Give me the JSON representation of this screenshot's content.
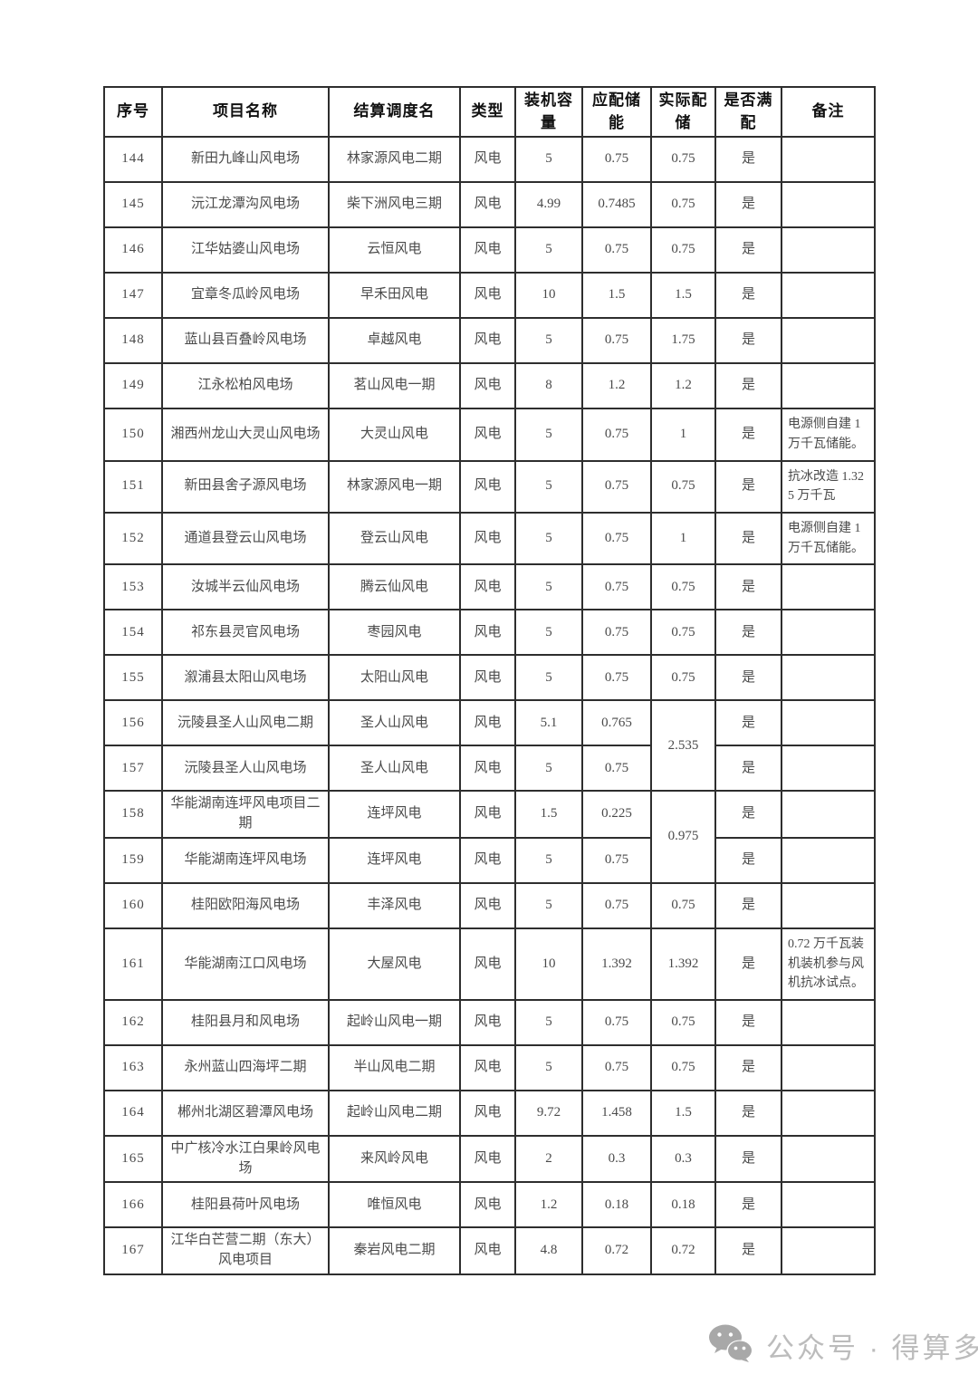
{
  "table": {
    "columns": [
      {
        "key": "no",
        "label": "序号"
      },
      {
        "key": "project",
        "label": "项目名称"
      },
      {
        "key": "dispatch",
        "label": "结算调度名"
      },
      {
        "key": "type",
        "label": "类型"
      },
      {
        "key": "capacity",
        "label": "装机容量"
      },
      {
        "key": "required",
        "label": "应配储能"
      },
      {
        "key": "actual",
        "label": "实际配储"
      },
      {
        "key": "satisfied",
        "label": "是否满配"
      },
      {
        "key": "remark",
        "label": "备注"
      }
    ],
    "rows": [
      {
        "no": "144",
        "project": "新田九峰山风电场",
        "dispatch": "林家源风电二期",
        "type": "风电",
        "capacity": "5",
        "required": "0.75",
        "actual": "0.75",
        "satisfied": "是",
        "remark": ""
      },
      {
        "no": "145",
        "project": "沅江龙潭沟风电场",
        "dispatch": "柴下洲风电三期",
        "type": "风电",
        "capacity": "4.99",
        "required": "0.7485",
        "actual": "0.75",
        "satisfied": "是",
        "remark": ""
      },
      {
        "no": "146",
        "project": "江华姑婆山风电场",
        "dispatch": "云恒风电",
        "type": "风电",
        "capacity": "5",
        "required": "0.75",
        "actual": "0.75",
        "satisfied": "是",
        "remark": ""
      },
      {
        "no": "147",
        "project": "宜章冬瓜岭风电场",
        "dispatch": "早禾田风电",
        "type": "风电",
        "capacity": "10",
        "required": "1.5",
        "actual": "1.5",
        "satisfied": "是",
        "remark": ""
      },
      {
        "no": "148",
        "project": "蓝山县百叠岭风电场",
        "dispatch": "卓越风电",
        "type": "风电",
        "capacity": "5",
        "required": "0.75",
        "actual": "1.75",
        "satisfied": "是",
        "remark": ""
      },
      {
        "no": "149",
        "project": "江永松柏风电场",
        "dispatch": "茗山风电一期",
        "type": "风电",
        "capacity": "8",
        "required": "1.2",
        "actual": "1.2",
        "satisfied": "是",
        "remark": ""
      },
      {
        "no": "150",
        "project": "湘西州龙山大灵山风电场",
        "dispatch": "大灵山风电",
        "type": "风电",
        "capacity": "5",
        "required": "0.75",
        "actual": "1",
        "satisfied": "是",
        "remark": "电源侧自建 1 万千瓦储能。"
      },
      {
        "no": "151",
        "project": "新田县舍子源风电场",
        "dispatch": "林家源风电一期",
        "type": "风电",
        "capacity": "5",
        "required": "0.75",
        "actual": "0.75",
        "satisfied": "是",
        "remark": "抗冰改造 1.325 万千瓦"
      },
      {
        "no": "152",
        "project": "通道县登云山风电场",
        "dispatch": "登云山风电",
        "type": "风电",
        "capacity": "5",
        "required": "0.75",
        "actual": "1",
        "satisfied": "是",
        "remark": "电源侧自建 1 万千瓦储能。"
      },
      {
        "no": "153",
        "project": "汝城半云仙风电场",
        "dispatch": "腾云仙风电",
        "type": "风电",
        "capacity": "5",
        "required": "0.75",
        "actual": "0.75",
        "satisfied": "是",
        "remark": ""
      },
      {
        "no": "154",
        "project": "祁东县灵官风电场",
        "dispatch": "枣园风电",
        "type": "风电",
        "capacity": "5",
        "required": "0.75",
        "actual": "0.75",
        "satisfied": "是",
        "remark": ""
      },
      {
        "no": "155",
        "project": "溆浦县太阳山风电场",
        "dispatch": "太阳山风电",
        "type": "风电",
        "capacity": "5",
        "required": "0.75",
        "actual": "0.75",
        "satisfied": "是",
        "remark": ""
      },
      {
        "no": "156",
        "project": "沅陵县圣人山风电二期",
        "dispatch": "圣人山风电",
        "type": "风电",
        "capacity": "5.1",
        "required": "0.765",
        "actual": "2.535",
        "actual_rowspan": 2,
        "satisfied": "是",
        "remark": ""
      },
      {
        "no": "157",
        "project": "沅陵县圣人山风电场",
        "dispatch": "圣人山风电",
        "type": "风电",
        "capacity": "5",
        "required": "0.75",
        "actual": null,
        "satisfied": "是",
        "remark": ""
      },
      {
        "no": "158",
        "project": "华能湖南连坪风电项目二期",
        "dispatch": "连坪风电",
        "type": "风电",
        "capacity": "1.5",
        "required": "0.225",
        "actual": "0.975",
        "actual_rowspan": 2,
        "satisfied": "是",
        "remark": ""
      },
      {
        "no": "159",
        "project": "华能湖南连坪风电场",
        "dispatch": "连坪风电",
        "type": "风电",
        "capacity": "5",
        "required": "0.75",
        "actual": null,
        "satisfied": "是",
        "remark": ""
      },
      {
        "no": "160",
        "project": "桂阳欧阳海风电场",
        "dispatch": "丰泽风电",
        "type": "风电",
        "capacity": "5",
        "required": "0.75",
        "actual": "0.75",
        "satisfied": "是",
        "remark": ""
      },
      {
        "no": "161",
        "project": "华能湖南江口风电场",
        "dispatch": "大屋风电",
        "type": "风电",
        "capacity": "10",
        "required": "1.392",
        "actual": "1.392",
        "satisfied": "是",
        "remark": "0.72 万千瓦装机装机参与风机抗冰试点。"
      },
      {
        "no": "162",
        "project": "桂阳县月和风电场",
        "dispatch": "起岭山风电一期",
        "type": "风电",
        "capacity": "5",
        "required": "0.75",
        "actual": "0.75",
        "satisfied": "是",
        "remark": ""
      },
      {
        "no": "163",
        "project": "永州蓝山四海坪二期",
        "dispatch": "半山风电二期",
        "type": "风电",
        "capacity": "5",
        "required": "0.75",
        "actual": "0.75",
        "satisfied": "是",
        "remark": ""
      },
      {
        "no": "164",
        "project": "郴州北湖区碧潭风电场",
        "dispatch": "起岭山风电二期",
        "type": "风电",
        "capacity": "9.72",
        "required": "1.458",
        "actual": "1.5",
        "satisfied": "是",
        "remark": ""
      },
      {
        "no": "165",
        "project": "中广核冷水江白果岭风电场",
        "dispatch": "来风岭风电",
        "type": "风电",
        "capacity": "2",
        "required": "0.3",
        "actual": "0.3",
        "satisfied": "是",
        "remark": ""
      },
      {
        "no": "166",
        "project": "桂阳县荷叶风电场",
        "dispatch": "唯恒风电",
        "type": "风电",
        "capacity": "1.2",
        "required": "0.18",
        "actual": "0.18",
        "satisfied": "是",
        "remark": ""
      },
      {
        "no": "167",
        "project": "江华白芒营二期（东大）风电项目",
        "dispatch": "秦岩风电二期",
        "type": "风电",
        "capacity": "4.8",
        "required": "0.72",
        "actual": "0.72",
        "satisfied": "是",
        "remark": ""
      }
    ]
  },
  "footer": {
    "watermark": "公众号 · 得算多",
    "icon_color": "#a8a8a8",
    "text_color": "#bcbcbc"
  }
}
